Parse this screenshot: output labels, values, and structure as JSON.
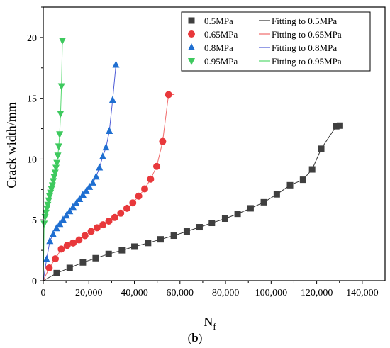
{
  "chart_data": {
    "type": "scatter",
    "xlabel": "N",
    "xlabel_sub": "f",
    "ylabel": "Crack width/mm",
    "xlim": [
      0,
      150000
    ],
    "ylim": [
      0,
      22.5
    ],
    "x_ticks": [
      0,
      20000,
      40000,
      60000,
      80000,
      100000,
      120000,
      140000
    ],
    "x_tick_labels": [
      "0",
      "20,000",
      "40,000",
      "60,000",
      "80,000",
      "100,000",
      "120,000",
      "140,000"
    ],
    "y_ticks": [
      0,
      5,
      10,
      15,
      20
    ],
    "y_tick_labels": [
      "0",
      "5",
      "10",
      "15",
      "20"
    ],
    "grid": false,
    "legend_position": "top-right",
    "caption_bold": "b",
    "caption_left": "(",
    "caption_right": ")",
    "series": [
      {
        "name": "0.5MPa",
        "fit_name": "Fitting to 0.5MPa",
        "marker": "square",
        "color": "#3f3f3f",
        "fit_color": "#333333",
        "x": [
          0,
          5900,
          11600,
          17400,
          23000,
          28700,
          34500,
          40000,
          46000,
          51500,
          57300,
          63000,
          68600,
          74000,
          79800,
          85300,
          91000,
          96800,
          102500,
          108300,
          114000,
          118000,
          122000,
          128600,
          130200
        ],
        "y": [
          0,
          0.62,
          1.05,
          1.5,
          1.85,
          2.2,
          2.5,
          2.8,
          3.1,
          3.4,
          3.7,
          4.05,
          4.4,
          4.75,
          5.1,
          5.5,
          5.95,
          6.45,
          7.1,
          7.85,
          8.3,
          9.15,
          10.85,
          12.7,
          12.75
        ]
      },
      {
        "name": "0.65MPa",
        "fit_name": "Fitting to 0.65MPa",
        "marker": "circle",
        "color": "#e8383b",
        "fit_color": "#f06a6a",
        "x": [
          0,
          2600,
          5300,
          7900,
          10500,
          13100,
          15700,
          18300,
          21000,
          23600,
          26200,
          28800,
          31400,
          34000,
          36700,
          39300,
          41900,
          44500,
          47100,
          49800,
          52400,
          55000,
          57600
        ],
        "y": [
          0,
          1.05,
          1.8,
          2.6,
          2.9,
          3.1,
          3.35,
          3.7,
          4.05,
          4.35,
          4.6,
          4.9,
          5.2,
          5.55,
          5.95,
          6.4,
          6.95,
          7.55,
          8.35,
          9.4,
          11.45,
          15.3,
          15.3
        ]
      },
      {
        "name": "0.8MPa",
        "fit_name": "Fitting to 0.8MPa",
        "marker": "triangle-up",
        "color": "#1f6fd1",
        "fit_color": "#4e5bd6",
        "x": [
          0,
          1450,
          2900,
          4350,
          5800,
          7250,
          8700,
          10150,
          11600,
          13050,
          14500,
          15950,
          17400,
          18850,
          20300,
          21750,
          23200,
          24650,
          26100,
          27550,
          29000,
          30450,
          31900
        ],
        "y": [
          0,
          1.75,
          3.25,
          3.8,
          4.3,
          4.65,
          5.0,
          5.35,
          5.7,
          6.05,
          6.35,
          6.7,
          7.05,
          7.35,
          7.7,
          8.05,
          8.55,
          9.3,
          10.2,
          10.95,
          12.3,
          14.85,
          17.75
        ]
      },
      {
        "name": "0.95MPa",
        "fit_name": "Fitting to 0.95MPa",
        "marker": "triangle-down",
        "color": "#3ec95e",
        "fit_color": "#55d96e",
        "x": [
          0,
          400,
          800,
          1200,
          1600,
          2000,
          2400,
          2800,
          3200,
          3600,
          4000,
          4400,
          4800,
          5200,
          5600,
          6000,
          6400,
          6800,
          7200,
          7600,
          8000,
          8400,
          8800
        ],
        "y": [
          0,
          4.7,
          5.25,
          5.6,
          5.95,
          6.25,
          6.6,
          6.95,
          7.25,
          7.55,
          7.85,
          8.2,
          8.55,
          8.9,
          9.3,
          9.7,
          10.3,
          11.05,
          12.05,
          13.75,
          16.0,
          19.75,
          19.75
        ]
      }
    ]
  }
}
